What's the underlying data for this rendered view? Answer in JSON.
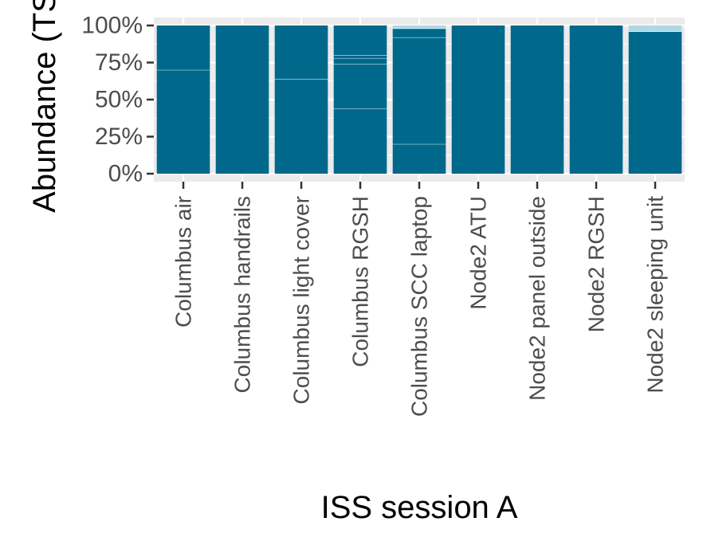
{
  "chart_data": {
    "type": "bar",
    "stacked": true,
    "title": "",
    "xlabel": "ISS session A",
    "ylabel": "Abundance (TS",
    "ylim": [
      0,
      1
    ],
    "yticks": [
      0,
      0.25,
      0.5,
      0.75,
      1.0
    ],
    "ytick_labels": [
      "0%",
      "25%",
      "50%",
      "75%",
      "100%"
    ],
    "grid": true,
    "legend": "none",
    "categories": [
      "Columbus air",
      "Columbus handrails",
      "Columbus light cover",
      "Columbus RGSH",
      "Columbus SCC laptop",
      "Node2 ATU",
      "Node2 panel outside",
      "Node2 RGSH",
      "Node2 sleeping unit"
    ],
    "segments": [
      [
        {
          "value": 0.7,
          "color": "#00688b"
        },
        {
          "value": 0.3,
          "color": "#00688b"
        }
      ],
      [
        {
          "value": 1.0,
          "color": "#00688b"
        }
      ],
      [
        {
          "value": 0.64,
          "color": "#00688b"
        },
        {
          "value": 0.36,
          "color": "#00688b"
        }
      ],
      [
        {
          "value": 0.44,
          "color": "#00688b"
        },
        {
          "value": 0.3,
          "color": "#00688b"
        },
        {
          "value": 0.04,
          "color": "#00688b"
        },
        {
          "value": 0.02,
          "color": "#00688b"
        },
        {
          "value": 0.2,
          "color": "#00688b"
        }
      ],
      [
        {
          "value": 0.2,
          "color": "#00688b"
        },
        {
          "value": 0.72,
          "color": "#00688b"
        },
        {
          "value": 0.06,
          "color": "#00688b"
        },
        {
          "value": 0.02,
          "color": "#add8e6"
        }
      ],
      [
        {
          "value": 1.0,
          "color": "#00688b"
        }
      ],
      [
        {
          "value": 1.0,
          "color": "#00688b"
        }
      ],
      [
        {
          "value": 1.0,
          "color": "#00688b"
        }
      ],
      [
        {
          "value": 0.96,
          "color": "#00688b"
        },
        {
          "value": 0.04,
          "color": "#add8e6"
        }
      ]
    ],
    "colors": {
      "panel_background": "#ebebeb",
      "gridline": "#ffffff",
      "bar_primary": "#00688b",
      "bar_light": "#add8e6",
      "segment_separator": "#ffffff"
    }
  }
}
